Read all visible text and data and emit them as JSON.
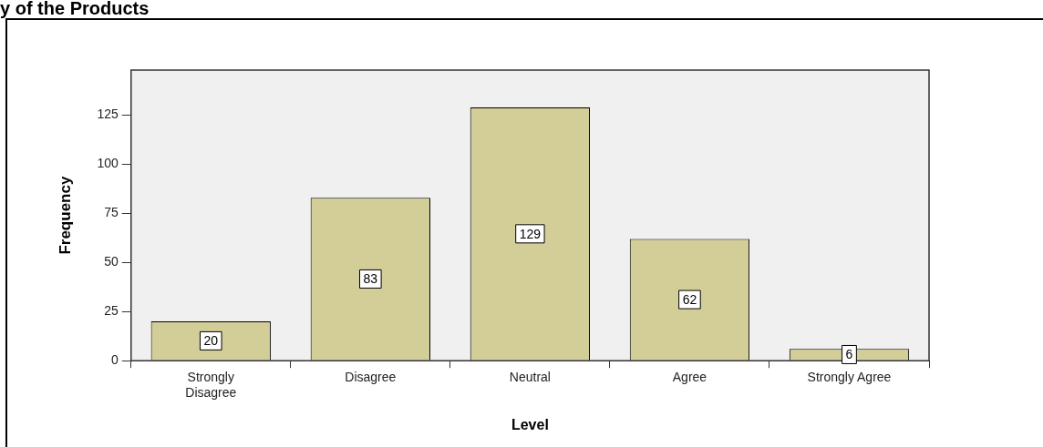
{
  "chart_data": {
    "type": "bar",
    "title": "y of the Products",
    "xlabel": "Level",
    "ylabel": "Frequency",
    "categories": [
      "Strongly Disagree",
      "Disagree",
      "Neutral",
      "Agree",
      "Strongly Agree"
    ],
    "values": [
      20,
      83,
      129,
      62,
      6
    ],
    "color": "#d3cd97",
    "ylim": [
      0,
      148
    ],
    "yticks": [
      0,
      25,
      50,
      75,
      100,
      125
    ],
    "grid": false,
    "legend": false,
    "data_labels": true
  }
}
